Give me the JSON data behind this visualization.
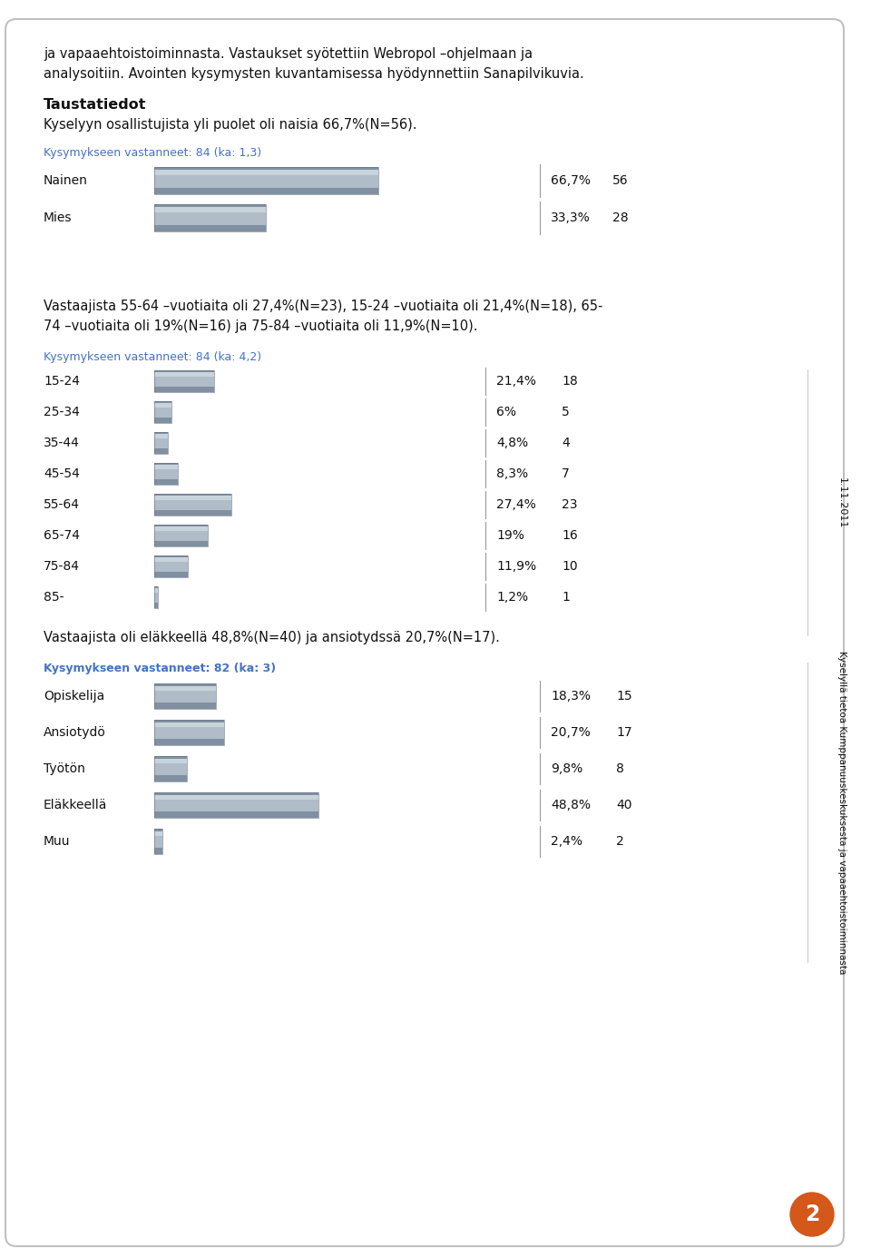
{
  "page_bg": "#ffffff",
  "border_color": "#c0c0c0",
  "text_color": "#000000",
  "blue_text_color": "#4472c4",
  "header_text1": "ja vapaaehtoistoiminnasta. Vastaukset syötettiin Webropol –ohjelmaan ja",
  "header_text2": "analysoitiin. Avointen kysymysten kuvantamisessa hyödynnettiin Sanapilvikuvia.",
  "bold_header": "Taustatiedot",
  "sub_header": "Kyselyyn osallistujista yli puolet oli naisia 66,7%(N=56).",
  "chart1_title": "Kysymykseen vastanneet: 84 (ka: 1,3)",
  "chart1_categories": [
    "Nainen",
    "Mies"
  ],
  "chart1_values": [
    66.7,
    33.3
  ],
  "chart1_counts": [
    56,
    28
  ],
  "chart1_pcts": [
    "66,7%",
    "33,3%"
  ],
  "middle_text1": "Vastaajista 55-64 –vuotiaita oli 27,4%(N=23), 15-24 –vuotiaita oli 21,4%(N=18), 65-",
  "middle_text2": "74 –vuotiaita oli 19%(N=16) ja 75-84 –vuotiaita oli 11,9%(N=10).",
  "chart2_title": "Kysymykseen vastanneet: 84 (ka: 4,2)",
  "chart2_categories": [
    "15-24",
    "25-34",
    "35-44",
    "45-54",
    "55-64",
    "65-74",
    "75-84",
    "85-"
  ],
  "chart2_values": [
    21.4,
    6.0,
    4.8,
    8.3,
    27.4,
    19.0,
    11.9,
    1.2
  ],
  "chart2_counts": [
    18,
    5,
    4,
    7,
    23,
    16,
    10,
    1
  ],
  "chart2_pcts": [
    "21,4%",
    "6%",
    "4,8%",
    "8,3%",
    "27,4%",
    "19%",
    "11,9%",
    "1,2%"
  ],
  "bottom_text": "Vastaajista oli eläkkeellä 48,8%(N=40) ja ansiotydssä 20,7%(N=17).",
  "chart3_title": "Kysymykseen vastanneet: 82 (ka: 3)",
  "chart3_categories": [
    "Opiskelija",
    "Ansiotydö",
    "Työtön",
    "Eläkkeellä",
    "Muu"
  ],
  "chart3_values": [
    18.3,
    20.7,
    9.8,
    48.8,
    2.4
  ],
  "chart3_counts": [
    15,
    17,
    8,
    40,
    2
  ],
  "chart3_pcts": [
    "18,3%",
    "20,7%",
    "9,8%",
    "48,8%",
    "2,4%"
  ],
  "sidebar_text": "Kyselyllä tietoa Kumppanuuskeskuksesta ja vapaaehtoistoiminnasta",
  "date_text": "1.11.2011",
  "page_number": "2"
}
